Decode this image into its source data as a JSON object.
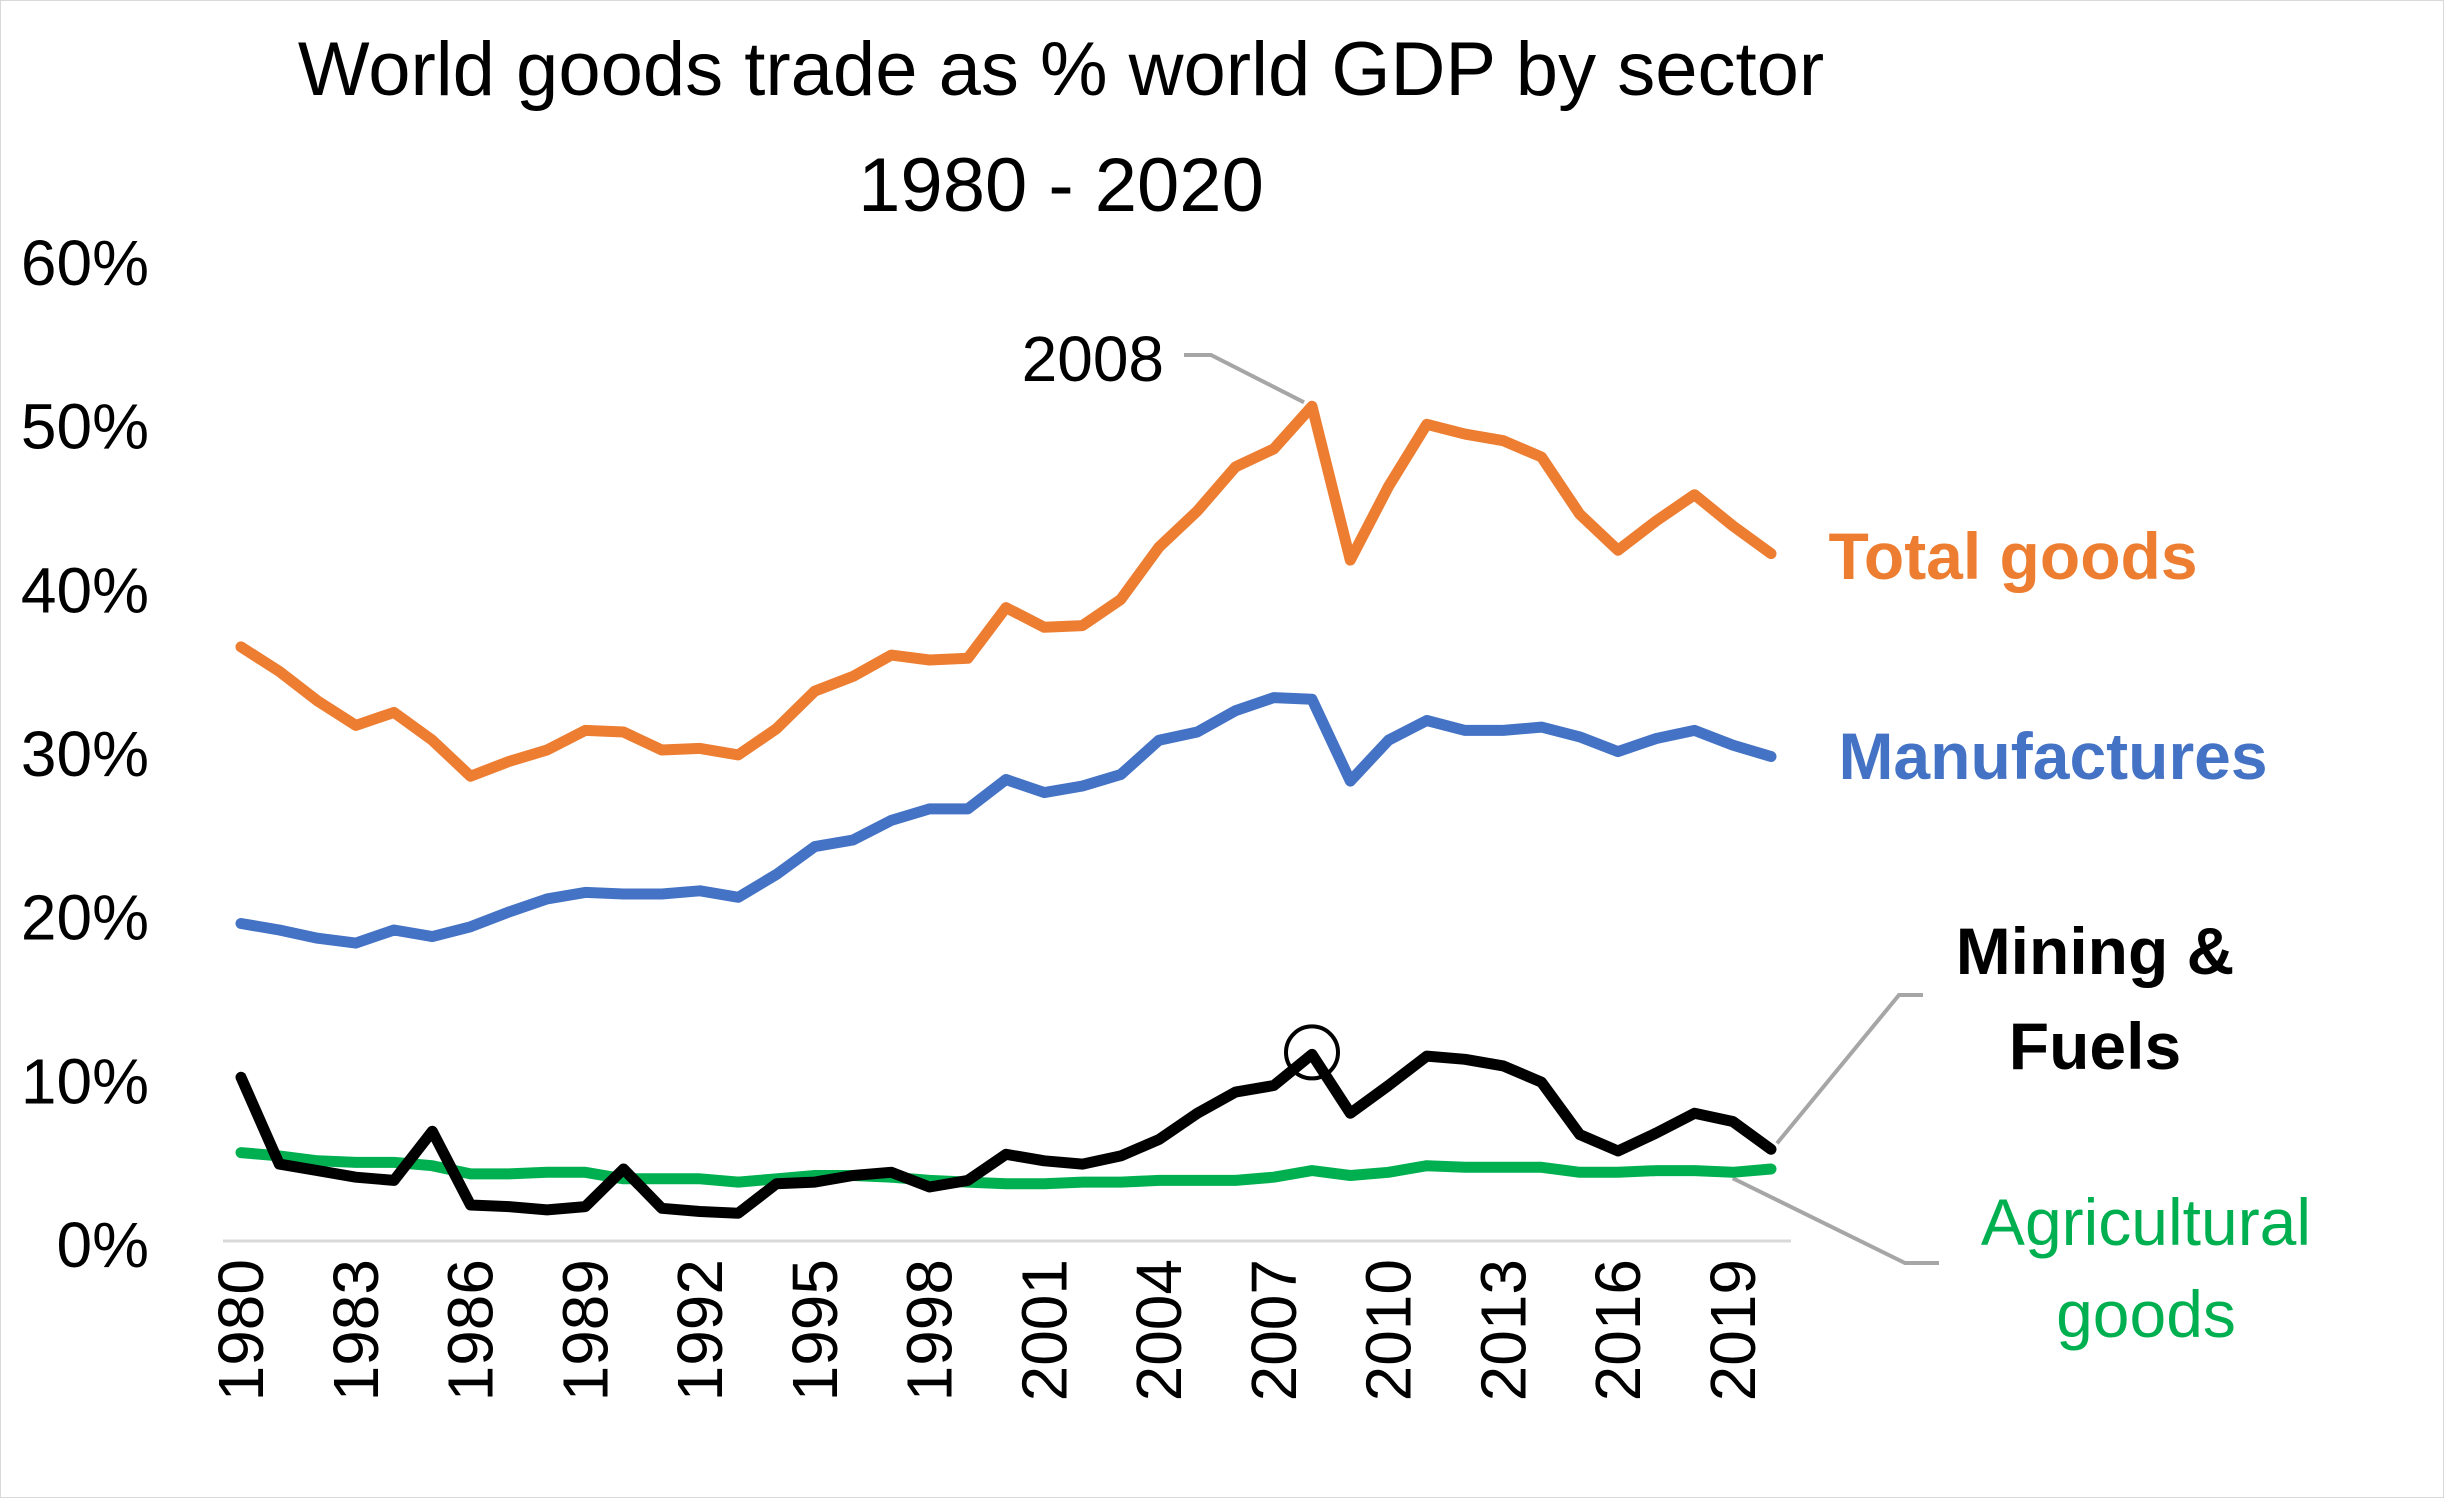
{
  "chart_data": {
    "type": "line",
    "title_lines": [
      "World goods trade as % world GDP by sector",
      "1980 - 2020"
    ],
    "xlabel": "",
    "ylabel": "",
    "x": [
      1980,
      1981,
      1982,
      1983,
      1984,
      1985,
      1986,
      1987,
      1988,
      1989,
      1990,
      1991,
      1992,
      1993,
      1994,
      1995,
      1996,
      1997,
      1998,
      1999,
      2000,
      2001,
      2002,
      2003,
      2004,
      2005,
      2006,
      2007,
      2008,
      2009,
      2010,
      2011,
      2012,
      2013,
      2014,
      2015,
      2016,
      2017,
      2018,
      2019,
      2020
    ],
    "x_tick_labels": [
      "1980",
      "1983",
      "1986",
      "1989",
      "1992",
      "1995",
      "1998",
      "2001",
      "2004",
      "2007",
      "2010",
      "2013",
      "2016",
      "2019"
    ],
    "xlim": [
      1980,
      2020
    ],
    "ylim": [
      0,
      60
    ],
    "y_ticks": [
      0,
      10,
      20,
      30,
      40,
      50,
      60
    ],
    "y_tick_labels": [
      "0%",
      "10%",
      "20%",
      "30%",
      "40%",
      "50%",
      "60%"
    ],
    "grid": false,
    "legend": "none",
    "series": [
      {
        "name": "Total goods",
        "label_lines": [
          "Total goods"
        ],
        "color": "#ed7d31",
        "values": [
          36.3,
          34.8,
          33.0,
          31.5,
          32.3,
          30.6,
          28.4,
          29.3,
          30.0,
          31.2,
          31.1,
          30.0,
          30.1,
          29.7,
          31.3,
          33.6,
          34.5,
          35.8,
          35.5,
          35.6,
          38.7,
          37.5,
          37.6,
          39.2,
          42.4,
          44.6,
          47.3,
          48.4,
          51.0,
          41.6,
          46.1,
          49.9,
          49.3,
          48.9,
          47.9,
          44.4,
          42.2,
          44.0,
          45.6,
          43.7,
          42.0
        ]
      },
      {
        "name": "Manufactures",
        "label_lines": [
          "Manufactures"
        ],
        "color": "#4472c4",
        "values": [
          19.4,
          19.0,
          18.5,
          18.2,
          19.0,
          18.6,
          19.2,
          20.1,
          20.9,
          21.3,
          21.2,
          21.2,
          21.4,
          21.0,
          22.4,
          24.1,
          24.5,
          25.7,
          26.4,
          26.4,
          28.2,
          27.4,
          27.8,
          28.5,
          30.6,
          31.1,
          32.4,
          33.2,
          33.1,
          28.1,
          30.6,
          31.8,
          31.2,
          31.2,
          31.4,
          30.8,
          29.9,
          30.7,
          31.2,
          30.3,
          29.6
        ]
      },
      {
        "name": "Mining & Fuels",
        "label_lines": [
          "Mining &",
          "Fuels"
        ],
        "color": "#000000",
        "values": [
          10.0,
          4.7,
          4.3,
          3.9,
          3.7,
          6.7,
          2.2,
          2.1,
          1.9,
          2.1,
          4.4,
          2.0,
          1.8,
          1.7,
          3.5,
          3.6,
          4.0,
          4.2,
          3.3,
          3.7,
          5.3,
          4.9,
          4.7,
          5.2,
          6.2,
          7.8,
          9.1,
          9.5,
          11.4,
          7.8,
          9.5,
          11.3,
          11.1,
          10.7,
          9.7,
          6.5,
          5.5,
          6.6,
          7.8,
          7.3,
          5.6
        ]
      },
      {
        "name": "Agricultural goods",
        "label_lines": [
          "Agricultural",
          "goods"
        ],
        "color": "#00b050",
        "values": [
          5.4,
          5.2,
          4.9,
          4.8,
          4.8,
          4.6,
          4.1,
          4.1,
          4.2,
          4.2,
          3.8,
          3.8,
          3.8,
          3.6,
          3.8,
          4.0,
          4.0,
          3.9,
          3.7,
          3.6,
          3.5,
          3.5,
          3.6,
          3.6,
          3.7,
          3.7,
          3.7,
          3.9,
          4.3,
          4.0,
          4.2,
          4.6,
          4.5,
          4.5,
          4.5,
          4.2,
          4.2,
          4.3,
          4.3,
          4.2,
          4.4
        ]
      }
    ],
    "annotations": [
      {
        "text": "2008",
        "x": 2008,
        "series": "Total goods"
      }
    ],
    "markers": [
      {
        "shape": "circle",
        "x": 2008,
        "series": "Mining & Fuels"
      }
    ],
    "colors": {
      "axis": "#d9d9d9",
      "leader_line": "#a6a6a6",
      "text": "#000000"
    }
  }
}
